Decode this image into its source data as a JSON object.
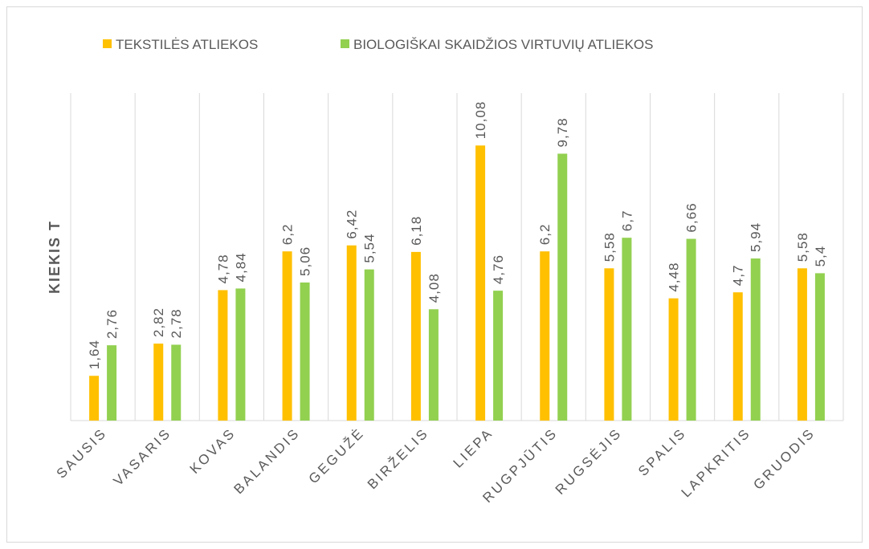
{
  "chart_data": {
    "type": "bar",
    "y_label": "KIEKIS T",
    "categories": [
      "SAUSIS",
      "VASARIS",
      "KOVAS",
      "BALANDIS",
      "GEGUŽĖ",
      "BIRŽELIS",
      "LIEPA",
      "RUGPJŪTIS",
      "RUGSĖJIS",
      "SPALIS",
      "LAPKRITIS",
      "GRUODIS"
    ],
    "series": [
      {
        "name": "TEKSTILĖS ATLIEKOS",
        "color": "#ffc000",
        "values": [
          1.64,
          2.82,
          4.78,
          6.2,
          6.42,
          6.18,
          10.08,
          6.2,
          5.58,
          4.48,
          4.7,
          5.58
        ],
        "value_labels": [
          "1,64",
          "2,82",
          "4,78",
          "6,2",
          "6,42",
          "6,18",
          "10,08",
          "6,2",
          "5,58",
          "4,48",
          "4,7",
          "5,58"
        ]
      },
      {
        "name": "BIOLOGIŠKAI SKAIDŽIOS VIRTUVIŲ ATLIEKOS",
        "color": "#92d050",
        "values": [
          2.76,
          2.78,
          4.84,
          5.06,
          5.54,
          4.08,
          4.76,
          9.78,
          6.7,
          6.66,
          5.94,
          5.4
        ],
        "value_labels": [
          "2,76",
          "2,78",
          "4,84",
          "5,06",
          "5,54",
          "4,08",
          "4,76",
          "9,78",
          "6,7",
          "6,66",
          "5,94",
          "5,4"
        ]
      }
    ],
    "ylim": [
      0,
      12
    ],
    "legend": "top"
  }
}
